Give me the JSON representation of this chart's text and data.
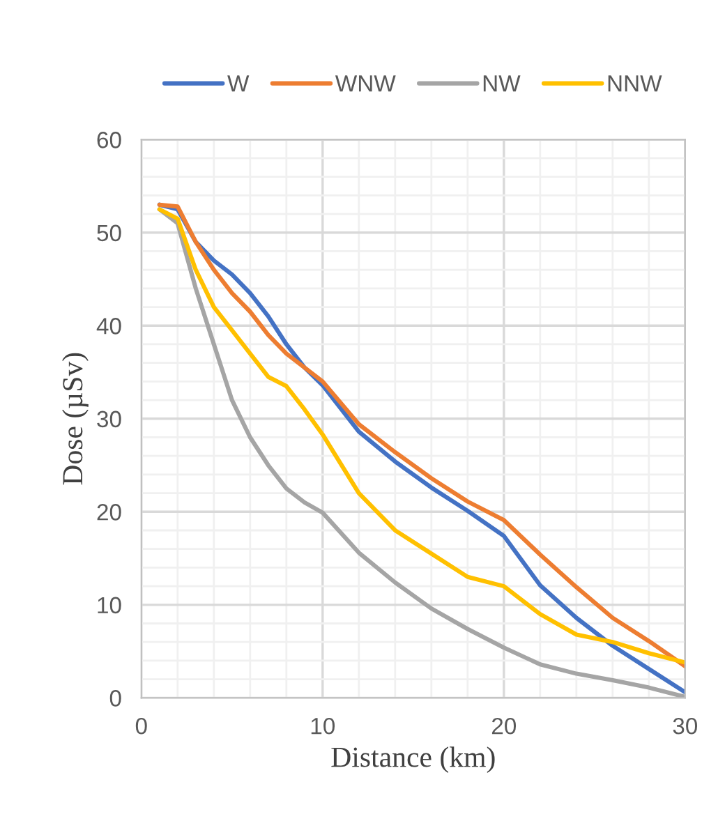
{
  "chart_data": {
    "type": "line",
    "xlabel": "Distance (km)",
    "ylabel": "Dose (µSv)",
    "x": [
      1,
      2,
      3,
      4,
      5,
      6,
      7,
      8,
      9,
      10,
      12,
      14,
      16,
      18,
      20,
      22,
      24,
      26,
      28,
      30
    ],
    "series": [
      {
        "name": "W",
        "color": "#4472c4",
        "values": [
          53,
          52.5,
          49,
          47,
          45.5,
          43.5,
          41,
          38,
          35.5,
          33.6,
          28.6,
          25.4,
          22.6,
          20.1,
          17.4,
          12.1,
          8.6,
          5.6,
          3.1,
          0.6
        ]
      },
      {
        "name": "WNW",
        "color": "#ed7d31",
        "values": [
          53,
          52.8,
          49,
          46,
          43.5,
          41.5,
          39,
          37,
          35.5,
          34,
          29.4,
          26.4,
          23.6,
          21.1,
          19.1,
          15.4,
          11.9,
          8.6,
          6.1,
          3.4
        ]
      },
      {
        "name": "NW",
        "color": "#a5a5a5",
        "values": [
          52.5,
          51,
          44,
          38,
          32,
          28,
          25,
          22.5,
          21,
          19.9,
          15.6,
          12.4,
          9.6,
          7.4,
          5.4,
          3.6,
          2.6,
          1.9,
          1.1,
          0.1
        ]
      },
      {
        "name": "NNW",
        "color": "#ffc000",
        "values": [
          52.5,
          51.5,
          46,
          42,
          39.5,
          37,
          34.5,
          33.5,
          31,
          28.3,
          22,
          18,
          15.5,
          13,
          12,
          9,
          6.8,
          6,
          4.8,
          3.8
        ]
      }
    ],
    "xlim": [
      0,
      30
    ],
    "xticks": [
      0,
      10,
      20,
      30
    ],
    "ylim": [
      0,
      60
    ],
    "yticks": [
      0,
      10,
      20,
      30,
      40,
      50,
      60
    ],
    "grid": true,
    "legend": "top",
    "marker": "none",
    "line_style": "solid"
  }
}
